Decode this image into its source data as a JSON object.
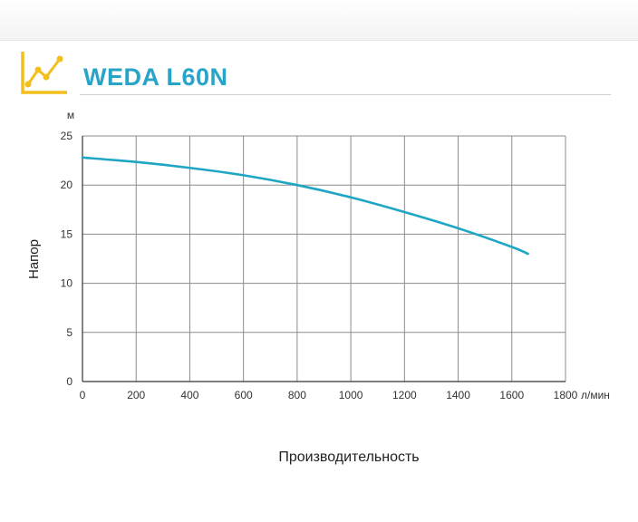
{
  "header": {
    "title": "WEDA L60N",
    "icon": "line-chart-icon",
    "accent_color": "#f2bf1d",
    "title_color": "#29a4c9"
  },
  "chart_data": {
    "type": "line",
    "title": "WEDA L60N",
    "xlabel": "Производительность",
    "ylabel": "Напор",
    "x_unit": "л/мин",
    "y_unit": "м",
    "xlim": [
      0,
      1800
    ],
    "ylim": [
      0,
      25
    ],
    "x_ticks": [
      0,
      200,
      400,
      600,
      800,
      1000,
      1200,
      1400,
      1600,
      1800
    ],
    "y_ticks": [
      0,
      5,
      10,
      15,
      20,
      25
    ],
    "grid": true,
    "line_color": "#1fa6c4",
    "series": [
      {
        "x": [
          0,
          200,
          400,
          600,
          800,
          1000,
          1200,
          1400,
          1600,
          1660
        ],
        "y": [
          22.8,
          22.35,
          21.75,
          21.0,
          20.0,
          18.75,
          17.25,
          15.6,
          13.7,
          13.0
        ]
      }
    ]
  }
}
